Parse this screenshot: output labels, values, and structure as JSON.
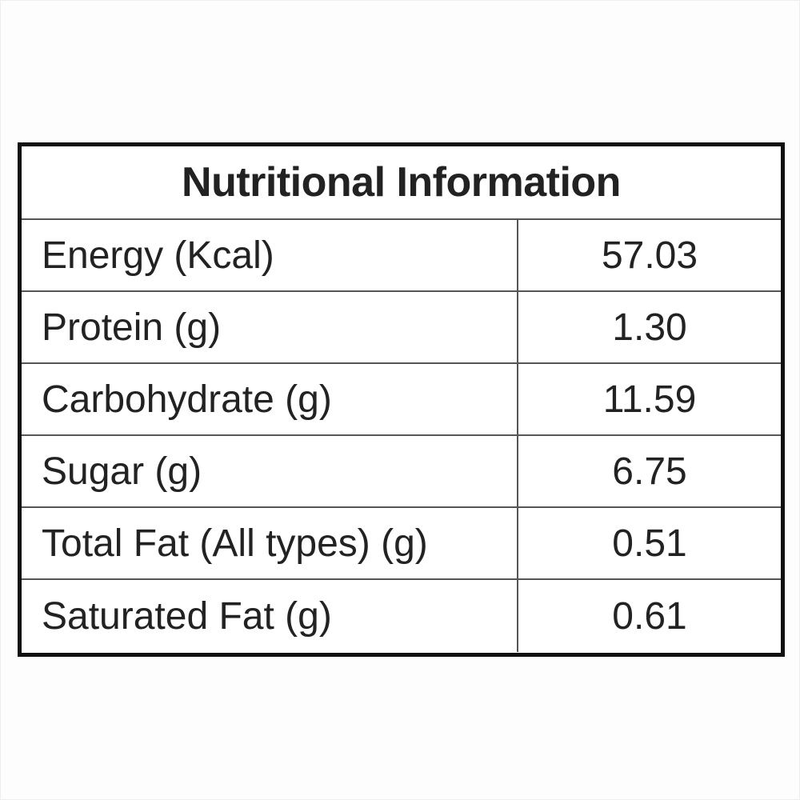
{
  "table": {
    "title": "Nutritional Information",
    "rows": [
      {
        "label": "Energy (Kcal)",
        "value": "57.03"
      },
      {
        "label": "Protein (g)",
        "value": "1.30"
      },
      {
        "label": "Carbohydrate (g)",
        "value": "11.59"
      },
      {
        "label": "Sugar (g)",
        "value": "6.75"
      },
      {
        "label": "Total Fat (All types) (g)",
        "value": "0.51"
      },
      {
        "label": "Saturated Fat (g)",
        "value": "0.61"
      }
    ]
  },
  "colors": {
    "border": "#111111",
    "grid": "#555555",
    "text": "#222222"
  }
}
